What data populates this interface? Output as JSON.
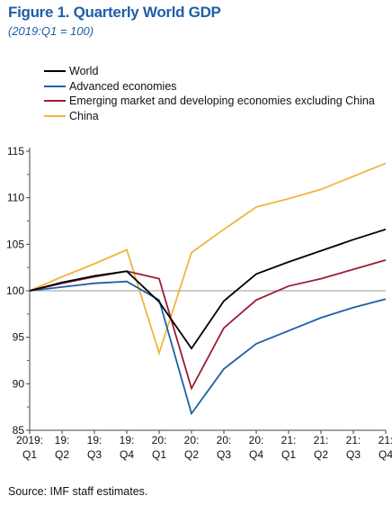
{
  "header": {
    "title": "Figure 1. Quarterly World GDP",
    "subtitle": "(2019:Q1 = 100)"
  },
  "source": "Source: IMF staff estimates.",
  "chart_data": {
    "type": "line",
    "x_label_lines": [
      [
        "2019:",
        "Q1"
      ],
      [
        "19:",
        "Q2"
      ],
      [
        "19:",
        "Q3"
      ],
      [
        "19:",
        "Q4"
      ],
      [
        "20:",
        "Q1"
      ],
      [
        "20:",
        "Q2"
      ],
      [
        "20:",
        "Q3"
      ],
      [
        "20:",
        "Q4"
      ],
      [
        "21:",
        "Q1"
      ],
      [
        "21:",
        "Q2"
      ],
      [
        "21:",
        "Q3"
      ],
      [
        "21:",
        "Q4"
      ]
    ],
    "ylim": [
      85,
      115
    ],
    "yticks": [
      85,
      90,
      95,
      100,
      105,
      110,
      115
    ],
    "reference_line": 100,
    "legend_position": "top-left",
    "series": [
      {
        "name": "World",
        "color": "#000000",
        "values": [
          100,
          100.9,
          101.6,
          102.1,
          98.8,
          93.8,
          98.9,
          101.8,
          103.1,
          104.3,
          105.5,
          106.6
        ]
      },
      {
        "name": "Advanced economies",
        "color": "#1f5fa8",
        "values": [
          100,
          100.4,
          100.8,
          101.0,
          99.0,
          86.8,
          91.6,
          94.3,
          95.7,
          97.1,
          98.2,
          99.1
        ]
      },
      {
        "name": "Emerging market and developing economies excluding China",
        "color": "#9e1b32",
        "values": [
          100,
          100.8,
          101.5,
          102.1,
          101.3,
          89.5,
          96.0,
          99.0,
          100.5,
          101.3,
          102.3,
          103.3
        ]
      },
      {
        "name": "China",
        "color": "#f2b43f",
        "values": [
          100,
          101.5,
          102.9,
          104.4,
          93.3,
          104.1,
          106.6,
          109.0,
          109.9,
          110.9,
          112.3,
          113.7
        ]
      }
    ]
  }
}
